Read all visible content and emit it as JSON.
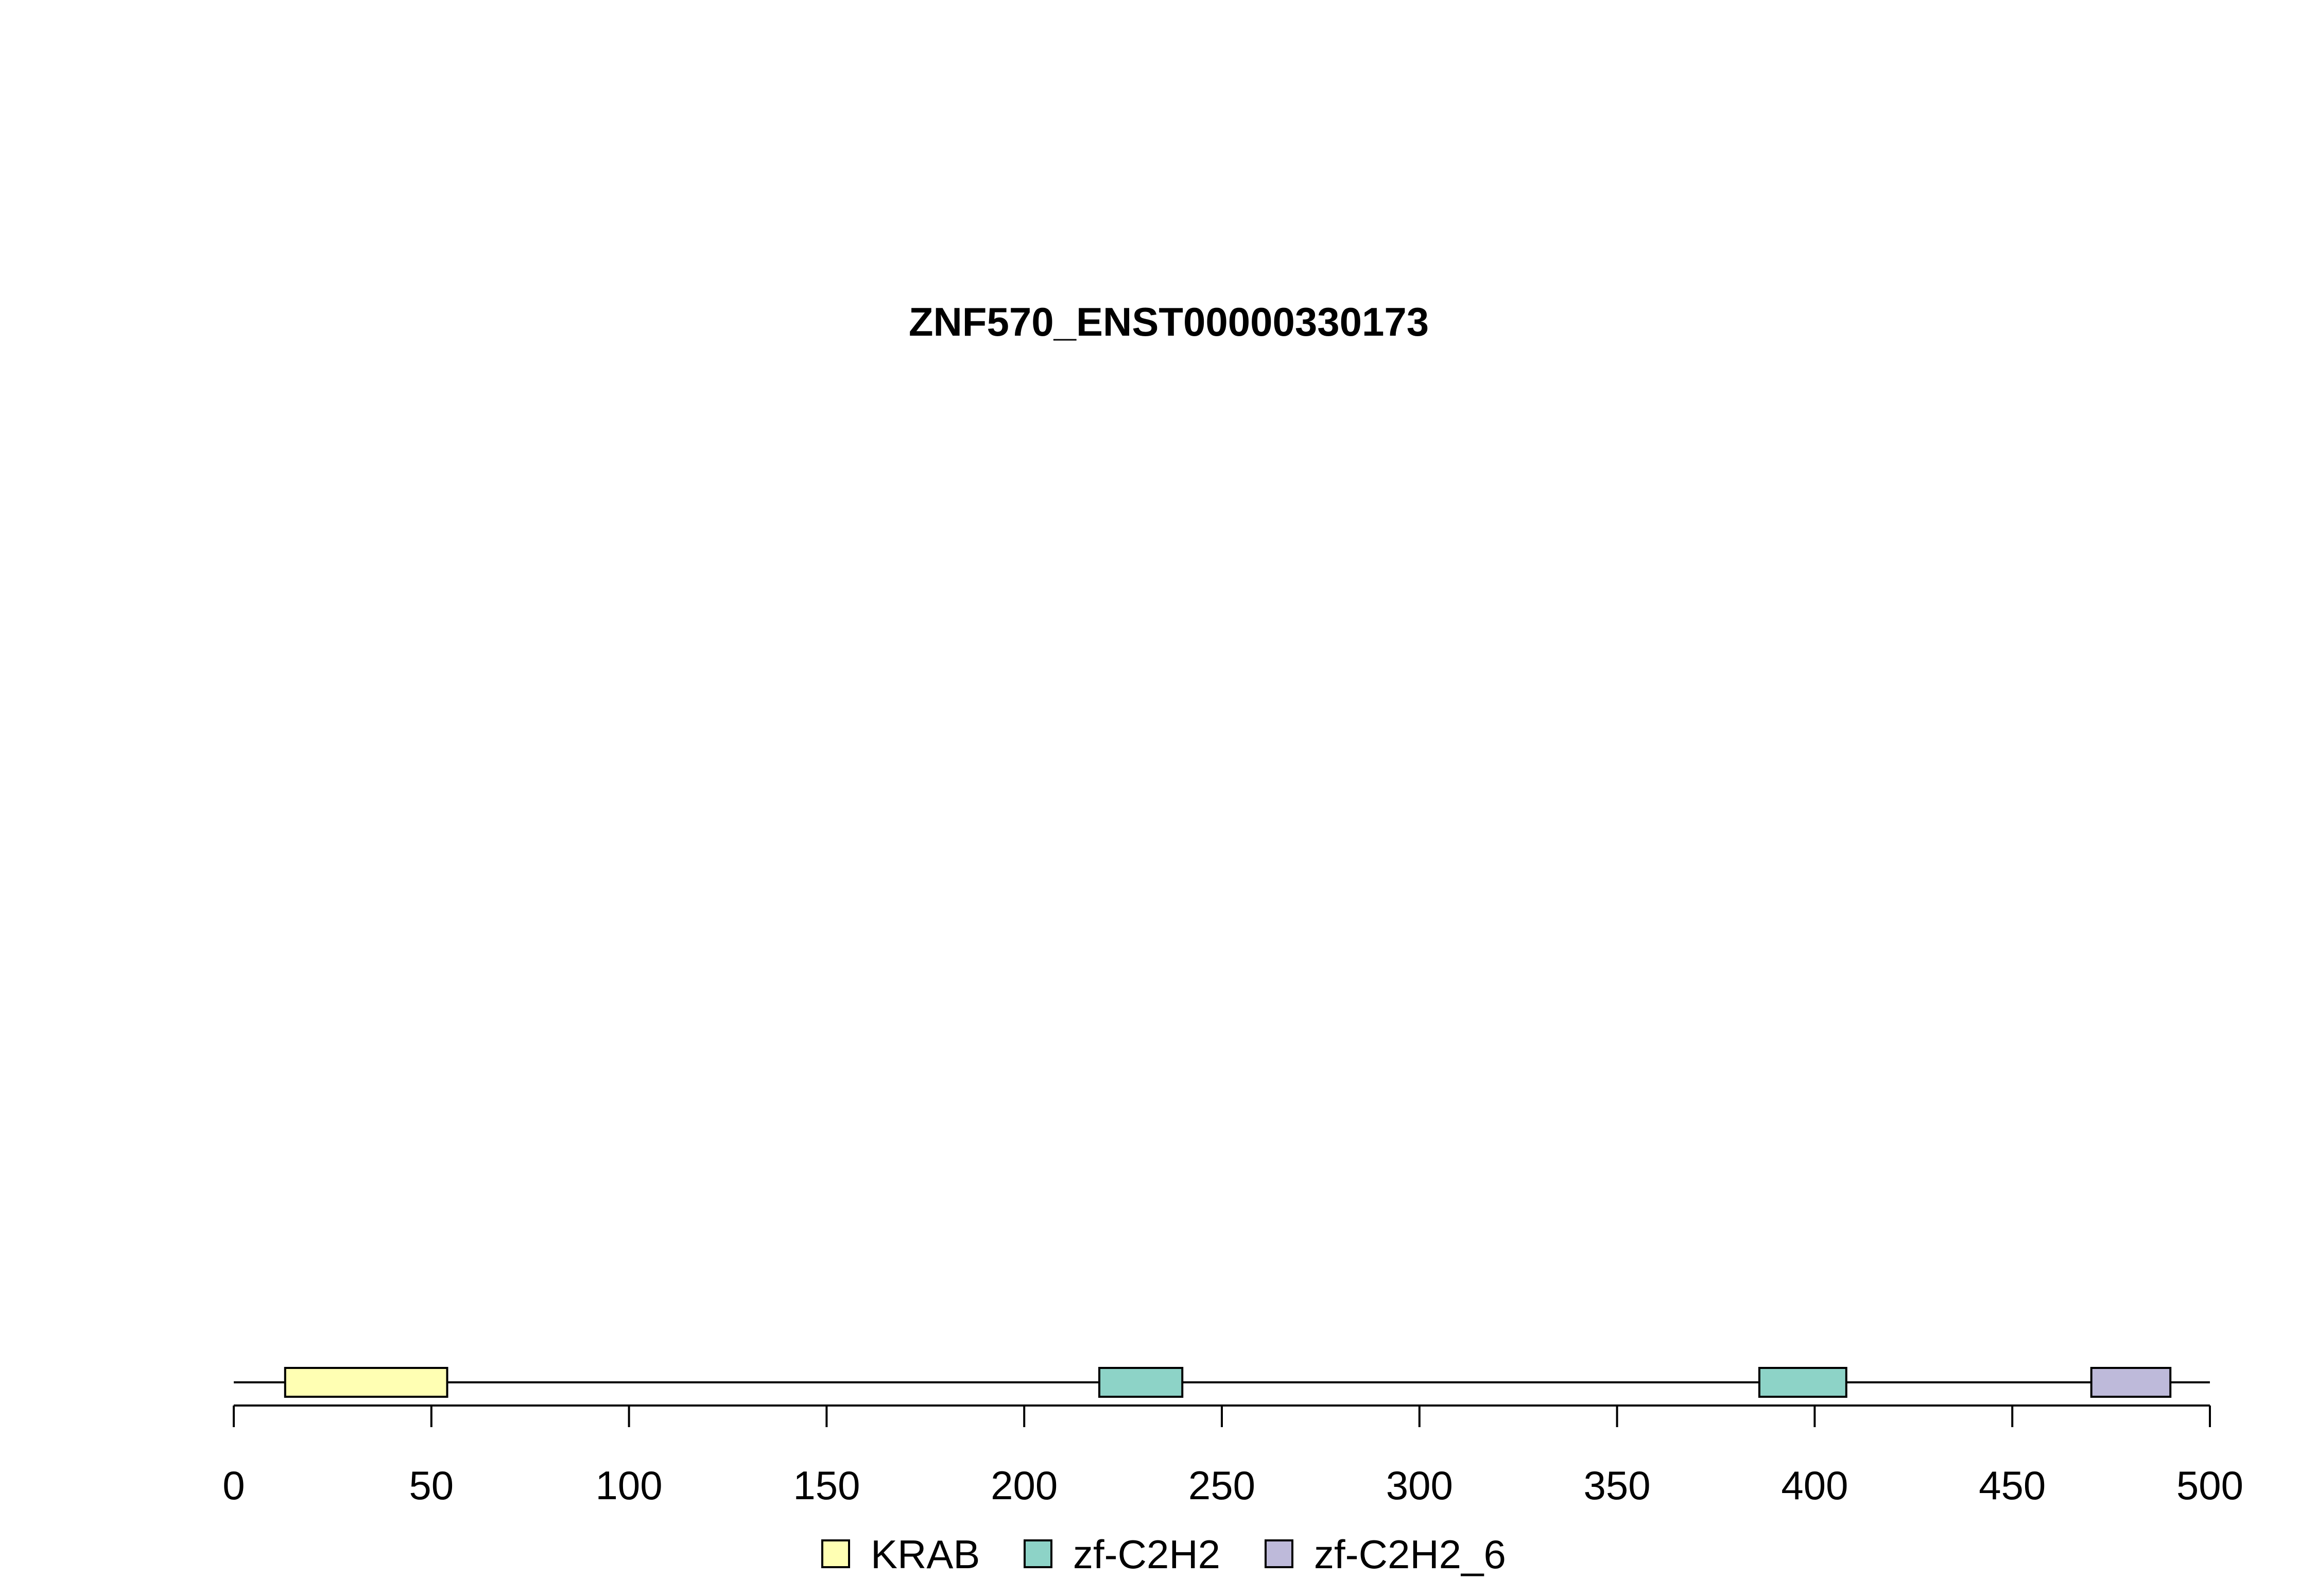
{
  "chart_data": {
    "type": "bar",
    "title": "ZNF570_ENST00000330173",
    "xlabel": "",
    "ylabel": "",
    "xlim": [
      0,
      500
    ],
    "protein_length": 500,
    "x_ticks": [
      0,
      50,
      100,
      150,
      200,
      250,
      300,
      350,
      400,
      450,
      500
    ],
    "x_tick_labels": [
      "0",
      "50",
      "100",
      "150",
      "200",
      "250",
      "300",
      "350",
      "400",
      "450",
      "500"
    ],
    "domains": [
      {
        "name": "KRAB",
        "start": 13,
        "end": 54
      },
      {
        "name": "zf-C2H2",
        "start": 219,
        "end": 240
      },
      {
        "name": "zf-C2H2",
        "start": 386,
        "end": 408
      },
      {
        "name": "zf-C2H2_6",
        "start": 470,
        "end": 490
      }
    ],
    "legend": [
      {
        "name": "KRAB",
        "color": "#FFFFB3"
      },
      {
        "name": "zf-C2H2",
        "color": "#8DD3C7"
      },
      {
        "name": "zf-C2H2_6",
        "color": "#BEBADA"
      }
    ],
    "legend_position": "bottom-center",
    "grid": false
  }
}
